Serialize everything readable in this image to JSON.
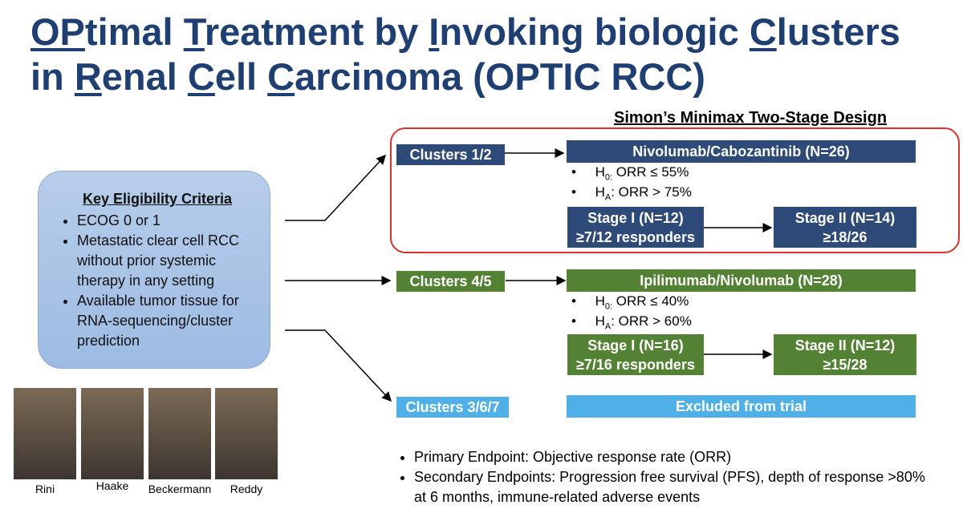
{
  "title_lines": [
    [
      {
        "text": "OP",
        "underline": true
      },
      {
        "text": "timal ",
        "underline": false
      },
      {
        "text": "T",
        "underline": true
      },
      {
        "text": "reatment by ",
        "underline": false
      },
      {
        "text": "I",
        "underline": true
      },
      {
        "text": "nvoking biologic ",
        "underline": false
      },
      {
        "text": "C",
        "underline": true
      },
      {
        "text": "lusters",
        "underline": false
      }
    ],
    [
      {
        "text": "in ",
        "underline": false
      },
      {
        "text": "R",
        "underline": true
      },
      {
        "text": "enal ",
        "underline": false
      },
      {
        "text": "C",
        "underline": true
      },
      {
        "text": "ell ",
        "underline": false
      },
      {
        "text": "C",
        "underline": true
      },
      {
        "text": "arcinoma (OPTIC RCC)",
        "underline": false
      }
    ]
  ],
  "design_title": "Simon’s Minimax Two-Stage Design",
  "eligibility": {
    "heading": "Key Eligibility Criteria",
    "items": [
      "ECOG 0 or 1",
      "Metastatic clear cell RCC without prior systemic therapy in any setting",
      "Available tumor tissue for RNA-sequencing/cluster prediction"
    ]
  },
  "arms": [
    {
      "cluster": "Clusters 1/2",
      "treatment": "Nivolumab/Cabozantinib (N=26)",
      "color": "#2d4a78",
      "hypotheses": [
        {
          "symbol": "H",
          "subscript": "0:",
          "text": " ORR ≤ 55%"
        },
        {
          "symbol": "H",
          "subscript": "A",
          "text": ": ORR > 75%"
        }
      ],
      "stage1": {
        "label": "Stage I (N=12)",
        "criterion": "≥7/12 responders"
      },
      "stage2": {
        "label": "Stage II (N=14)",
        "criterion": "≥18/26"
      }
    },
    {
      "cluster": "Clusters 4/5",
      "treatment": "Ipilimumab/Nivolumab (N=28)",
      "color": "#548235",
      "hypotheses": [
        {
          "symbol": "H",
          "subscript": "0:",
          "text": " ORR ≤ 40%"
        },
        {
          "symbol": "H",
          "subscript": "A",
          "text": ": ORR > 60%"
        }
      ],
      "stage1": {
        "label": "Stage I (N=16)",
        "criterion": "≥7/16 responders"
      },
      "stage2": {
        "label": "Stage II (N=12)",
        "criterion": "≥15/28"
      }
    },
    {
      "cluster": "Clusters 3/6/7",
      "treatment": "Excluded from trial",
      "color": "#4fb0e8"
    }
  ],
  "endpoints": [
    "Primary Endpoint: Objective response rate (ORR)",
    "Secondary Endpoints: Progression free survival (PFS), depth of response >80% at 6 months, immune-related adverse events"
  ],
  "investigators": [
    "Rini",
    "Haake",
    "Beckermann",
    "Reddy"
  ]
}
